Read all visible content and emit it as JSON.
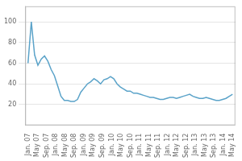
{
  "chart_data": {
    "type": "line",
    "x": [
      0,
      0.354839,
      0.709677,
      1.064516,
      1.419355,
      1.774194,
      2.129032,
      2.483871,
      2.83871,
      3.193548,
      3.548387,
      3.903226,
      4.258065,
      4.612903,
      4.967742,
      5.322581,
      5.677419,
      6.032258,
      6.387097,
      6.741935,
      7.096774,
      7.451613,
      7.806452,
      8.16129,
      8.516129,
      8.870968,
      9.225806,
      9.580645,
      9.935484,
      10.290323,
      10.645161,
      11,
      11.354839,
      11.709677,
      12.064516,
      12.419355,
      12.774194,
      13.129032,
      13.483871,
      13.83871,
      14.193548,
      14.548387,
      14.903226,
      15.258065,
      15.612903,
      15.967742,
      16.322581,
      16.677419,
      17.032258,
      17.387097,
      17.741935,
      18.096774,
      18.451613,
      18.806452,
      19.16129,
      19.516129,
      19.870968,
      20.225806,
      20.580645,
      20.935484,
      21.290323,
      21.645161,
      22
    ],
    "values": [
      60,
      100,
      68,
      58,
      64,
      67,
      62,
      54,
      48,
      38,
      28,
      24,
      24,
      23,
      23,
      25,
      32,
      36,
      40,
      42,
      45,
      43,
      40,
      44,
      45,
      47,
      45,
      40,
      37,
      35,
      33,
      33,
      31,
      31,
      30,
      29,
      28,
      27,
      27,
      26,
      25,
      25,
      26,
      27,
      27,
      26,
      27,
      28,
      29,
      30,
      28,
      27,
      26,
      26,
      27,
      26,
      25,
      24,
      24,
      25,
      26,
      28,
      30
    ],
    "color": "#5BA3C9",
    "xlim": [
      -0.3,
      22.3
    ],
    "xticks": [
      {
        "value": 0,
        "label": "Jan. 07"
      },
      {
        "value": 1,
        "label": "May 07"
      },
      {
        "value": 2,
        "label": "Sep. 07"
      },
      {
        "value": 3,
        "label": "Jan. 08"
      },
      {
        "value": 4,
        "label": "May 08"
      },
      {
        "value": 5,
        "label": "Sep. 08"
      },
      {
        "value": 6,
        "label": "Jan. 09"
      },
      {
        "value": 7,
        "label": "May 09"
      },
      {
        "value": 8,
        "label": "Sep. 09"
      },
      {
        "value": 9,
        "label": "Jan. 10"
      },
      {
        "value": 10,
        "label": "May 10"
      },
      {
        "value": 11,
        "label": "Sep. 10"
      },
      {
        "value": 12,
        "label": "Jan. 11"
      },
      {
        "value": 13,
        "label": "May 11"
      },
      {
        "value": 14,
        "label": "Sep. 11"
      },
      {
        "value": 15,
        "label": "Jan. 12"
      },
      {
        "value": 16,
        "label": "May 12"
      },
      {
        "value": 17,
        "label": "Sep. 12"
      },
      {
        "value": 18,
        "label": "Jan. 13"
      },
      {
        "value": 19,
        "label": "May 13"
      },
      {
        "value": 20,
        "label": "Sep. 13"
      },
      {
        "value": 21,
        "label": "Jan. 14"
      },
      {
        "value": 22,
        "label": "May 14"
      }
    ],
    "ylim": [
      0,
      115
    ],
    "yticks": [
      20,
      40,
      60,
      80,
      100
    ],
    "grid": "y"
  }
}
